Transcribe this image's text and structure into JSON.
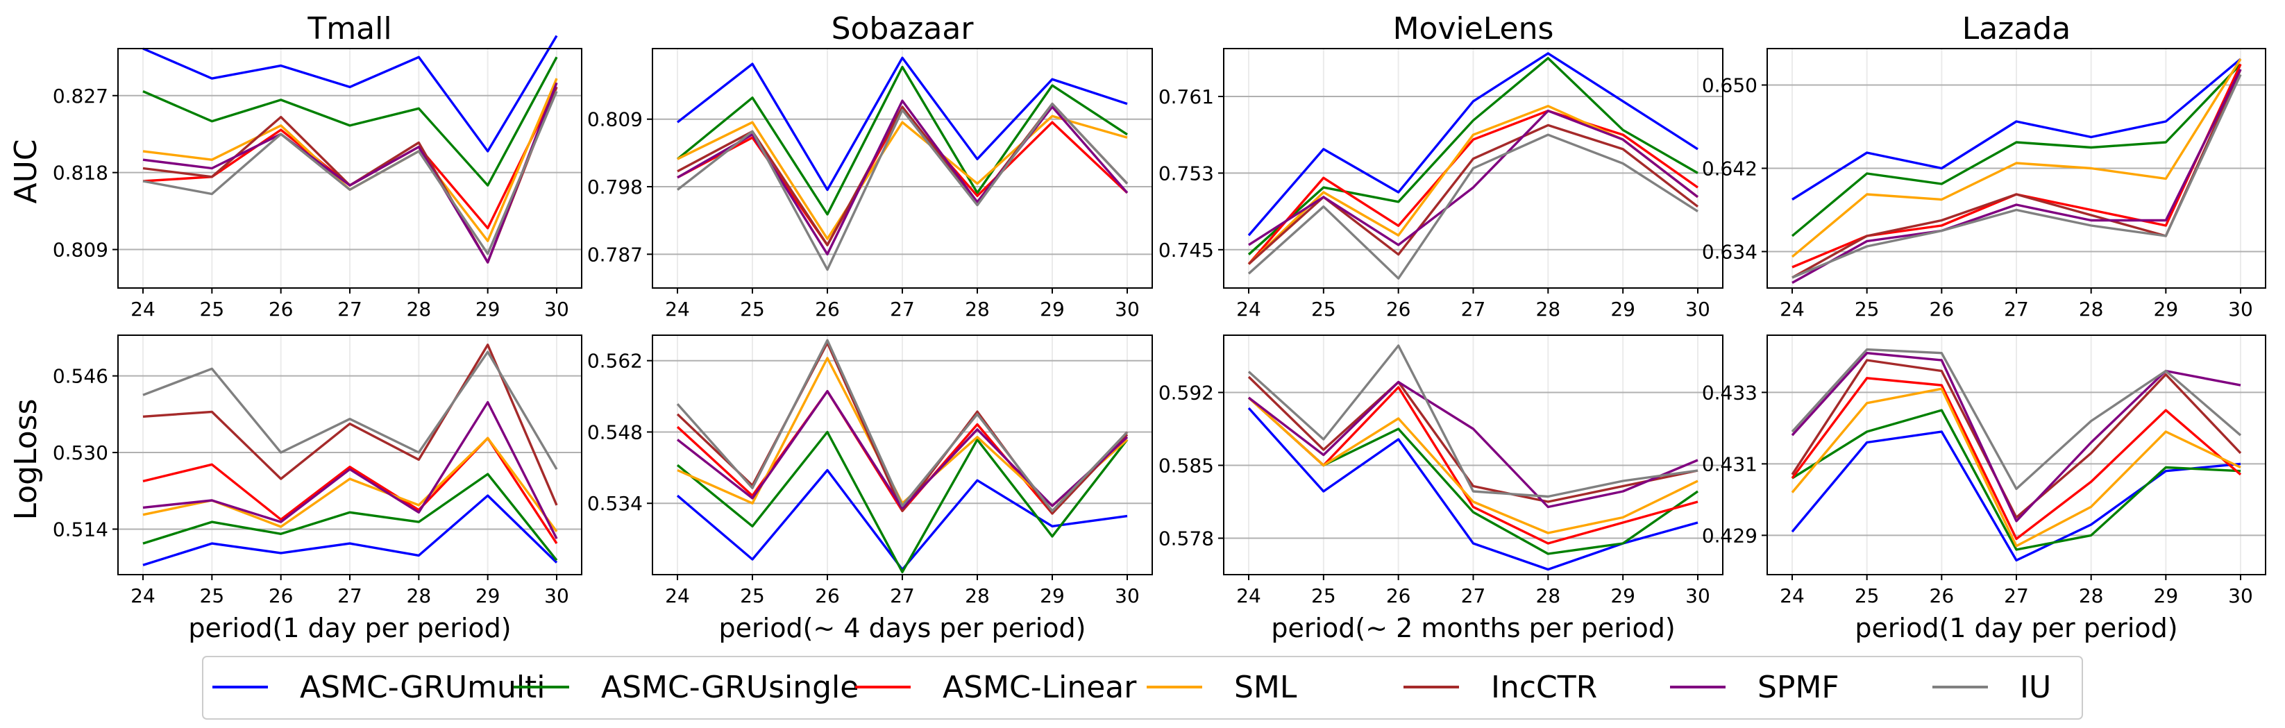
{
  "row_labels": [
    "AUC",
    "LogLoss"
  ],
  "legend": {
    "entries": [
      {
        "name": "ASMC-GRUmulti",
        "color": "#0000ff"
      },
      {
        "name": "ASMC-GRUsingle",
        "color": "#008000"
      },
      {
        "name": "ASMC-Linear",
        "color": "#ff0000"
      },
      {
        "name": "SML",
        "color": "#ffa500"
      },
      {
        "name": "IncCTR",
        "color": "#a52a2a"
      },
      {
        "name": "SPMF",
        "color": "#800080"
      },
      {
        "name": "IU",
        "color": "#808080"
      }
    ]
  },
  "chart_data": [
    {
      "type": "line",
      "metric": "AUC",
      "title": "Tmall",
      "xlabel": "",
      "x": [
        24,
        25,
        26,
        27,
        28,
        29,
        30
      ],
      "ylim": [
        0.8045,
        0.8325
      ],
      "yticks": [
        0.809,
        0.818,
        0.827
      ],
      "ytick_labels": [
        "0.809",
        "0.818",
        "0.827"
      ],
      "series": [
        {
          "name": "ASMC-GRUmulti",
          "values": [
            0.8325,
            0.829,
            0.8305,
            0.828,
            0.8315,
            0.8205,
            0.834
          ]
        },
        {
          "name": "ASMC-GRUsingle",
          "values": [
            0.8275,
            0.824,
            0.8265,
            0.8235,
            0.8255,
            0.8165,
            0.8315
          ]
        },
        {
          "name": "ASMC-Linear",
          "values": [
            0.817,
            0.8175,
            0.823,
            0.8165,
            0.821,
            0.8115,
            0.828
          ]
        },
        {
          "name": "SML",
          "values": [
            0.8205,
            0.8195,
            0.8235,
            0.816,
            0.8205,
            0.81,
            0.829
          ]
        },
        {
          "name": "IncCTR",
          "values": [
            0.8185,
            0.8175,
            0.8245,
            0.8165,
            0.8215,
            0.8075,
            0.828
          ]
        },
        {
          "name": "SPMF",
          "values": [
            0.8195,
            0.8185,
            0.8225,
            0.8165,
            0.821,
            0.8075,
            0.8285
          ]
        },
        {
          "name": "IU",
          "values": [
            0.817,
            0.8155,
            0.8225,
            0.816,
            0.8205,
            0.8085,
            0.8275
          ]
        }
      ]
    },
    {
      "type": "line",
      "metric": "AUC",
      "title": "Sobazaar",
      "xlabel": "",
      "x": [
        24,
        25,
        26,
        27,
        28,
        29,
        30
      ],
      "ylim": [
        0.7815,
        0.8205
      ],
      "yticks": [
        0.787,
        0.798,
        0.809
      ],
      "ytick_labels": [
        "0.787",
        "0.798",
        "0.809"
      ],
      "series": [
        {
          "name": "ASMC-GRUmulti",
          "values": [
            0.8085,
            0.818,
            0.7975,
            0.819,
            0.8025,
            0.8155,
            0.8115
          ]
        },
        {
          "name": "ASMC-GRUsingle",
          "values": [
            0.8025,
            0.8125,
            0.7935,
            0.8175,
            0.797,
            0.8145,
            0.8065
          ]
        },
        {
          "name": "ASMC-Linear",
          "values": [
            0.7995,
            0.806,
            0.7885,
            0.8105,
            0.7965,
            0.8085,
            0.797
          ]
        },
        {
          "name": "SML",
          "values": [
            0.8025,
            0.8085,
            0.7895,
            0.8085,
            0.7985,
            0.8095,
            0.806
          ]
        },
        {
          "name": "IncCTR",
          "values": [
            0.8005,
            0.807,
            0.7885,
            0.811,
            0.7955,
            0.8115,
            0.7985
          ]
        },
        {
          "name": "SPMF",
          "values": [
            0.7995,
            0.8065,
            0.787,
            0.812,
            0.7955,
            0.811,
            0.797
          ]
        },
        {
          "name": "IU",
          "values": [
            0.7975,
            0.807,
            0.7845,
            0.8105,
            0.795,
            0.8115,
            0.7985
          ]
        }
      ]
    },
    {
      "type": "line",
      "metric": "AUC",
      "title": "MovieLens",
      "xlabel": "",
      "x": [
        24,
        25,
        26,
        27,
        28,
        29,
        30
      ],
      "ylim": [
        0.741,
        0.766
      ],
      "yticks": [
        0.745,
        0.753,
        0.761
      ],
      "ytick_labels": [
        "0.745",
        "0.753",
        "0.761"
      ],
      "series": [
        {
          "name": "ASMC-GRUmulti",
          "values": [
            0.7465,
            0.7555,
            0.751,
            0.7605,
            0.7655,
            0.7605,
            0.7555
          ]
        },
        {
          "name": "ASMC-GRUsingle",
          "values": [
            0.7445,
            0.7515,
            0.75,
            0.7585,
            0.765,
            0.7575,
            0.753
          ]
        },
        {
          "name": "ASMC-Linear",
          "values": [
            0.7435,
            0.7525,
            0.7475,
            0.7565,
            0.7595,
            0.757,
            0.7515
          ]
        },
        {
          "name": "SML",
          "values": [
            0.7435,
            0.751,
            0.7465,
            0.757,
            0.76,
            0.7565,
            0.7505
          ]
        },
        {
          "name": "IncCTR",
          "values": [
            0.7435,
            0.7505,
            0.7445,
            0.7545,
            0.758,
            0.7555,
            0.7495
          ]
        },
        {
          "name": "SPMF",
          "values": [
            0.7455,
            0.7505,
            0.7455,
            0.7515,
            0.7595,
            0.7565,
            0.7505
          ]
        },
        {
          "name": "IU",
          "values": [
            0.7425,
            0.7495,
            0.742,
            0.7535,
            0.757,
            0.754,
            0.749
          ]
        }
      ]
    },
    {
      "type": "line",
      "metric": "AUC",
      "title": "Lazada",
      "xlabel": "",
      "x": [
        24,
        25,
        26,
        27,
        28,
        29,
        30
      ],
      "ylim": [
        0.6305,
        0.6535
      ],
      "yticks": [
        0.634,
        0.642,
        0.65
      ],
      "ytick_labels": [
        "0.634",
        "0.642",
        "0.650"
      ],
      "series": [
        {
          "name": "ASMC-GRUmulti",
          "values": [
            0.639,
            0.6435,
            0.642,
            0.6465,
            0.645,
            0.6465,
            0.6525
          ]
        },
        {
          "name": "ASMC-GRUsingle",
          "values": [
            0.6355,
            0.6415,
            0.6405,
            0.6445,
            0.644,
            0.6445,
            0.652
          ]
        },
        {
          "name": "ASMC-Linear",
          "values": [
            0.6325,
            0.6355,
            0.6365,
            0.6395,
            0.638,
            0.6365,
            0.652
          ]
        },
        {
          "name": "SML",
          "values": [
            0.6335,
            0.6395,
            0.639,
            0.6425,
            0.642,
            0.641,
            0.6525
          ]
        },
        {
          "name": "IncCTR",
          "values": [
            0.6315,
            0.6355,
            0.637,
            0.6395,
            0.6375,
            0.6355,
            0.6515
          ]
        },
        {
          "name": "SPMF",
          "values": [
            0.631,
            0.635,
            0.636,
            0.6385,
            0.637,
            0.637,
            0.6515
          ]
        },
        {
          "name": "IU",
          "values": [
            0.6315,
            0.6345,
            0.636,
            0.638,
            0.6365,
            0.6355,
            0.651
          ]
        }
      ]
    },
    {
      "type": "line",
      "metric": "LogLoss",
      "title": "",
      "xlabel": "period(1 day per period)",
      "x": [
        24,
        25,
        26,
        27,
        28,
        29,
        30
      ],
      "ylim": [
        0.5045,
        0.5545
      ],
      "yticks": [
        0.514,
        0.53,
        0.546
      ],
      "ytick_labels": [
        "0.514",
        "0.530",
        "0.546"
      ],
      "series": [
        {
          "name": "ASMC-GRUmulti",
          "values": [
            0.5065,
            0.511,
            0.509,
            0.511,
            0.5085,
            0.521,
            0.507
          ]
        },
        {
          "name": "ASMC-GRUsingle",
          "values": [
            0.511,
            0.5155,
            0.513,
            0.5175,
            0.5155,
            0.5255,
            0.5075
          ]
        },
        {
          "name": "ASMC-Linear",
          "values": [
            0.524,
            0.5275,
            0.516,
            0.527,
            0.518,
            0.533,
            0.511
          ]
        },
        {
          "name": "SML",
          "values": [
            0.517,
            0.52,
            0.5145,
            0.5245,
            0.519,
            0.533,
            0.5135
          ]
        },
        {
          "name": "IncCTR",
          "values": [
            0.5375,
            0.5385,
            0.5245,
            0.536,
            0.5285,
            0.5525,
            0.519
          ]
        },
        {
          "name": "SPMF",
          "values": [
            0.5185,
            0.52,
            0.5155,
            0.5265,
            0.5175,
            0.5405,
            0.512
          ]
        },
        {
          "name": "IU",
          "values": [
            0.542,
            0.5475,
            0.53,
            0.537,
            0.53,
            0.551,
            0.5265
          ]
        }
      ]
    },
    {
      "type": "line",
      "metric": "LogLoss",
      "title": "",
      "xlabel": "period(~ 4 days per period)",
      "x": [
        24,
        25,
        26,
        27,
        28,
        29,
        30
      ],
      "ylim": [
        0.52,
        0.567
      ],
      "yticks": [
        0.534,
        0.548,
        0.562
      ],
      "ytick_labels": [
        "0.534",
        "0.548",
        "0.562"
      ],
      "series": [
        {
          "name": "ASMC-GRUmulti",
          "values": [
            0.5355,
            0.523,
            0.5405,
            0.521,
            0.5385,
            0.5295,
            0.5315
          ]
        },
        {
          "name": "ASMC-GRUsingle",
          "values": [
            0.5415,
            0.5295,
            0.548,
            0.5205,
            0.5465,
            0.5275,
            0.5465
          ]
        },
        {
          "name": "ASMC-Linear",
          "values": [
            0.549,
            0.5355,
            0.556,
            0.5325,
            0.5495,
            0.532,
            0.548
          ]
        },
        {
          "name": "SML",
          "values": [
            0.5405,
            0.534,
            0.5625,
            0.534,
            0.547,
            0.5335,
            0.5465
          ]
        },
        {
          "name": "IncCTR",
          "values": [
            0.5515,
            0.5375,
            0.5655,
            0.5325,
            0.552,
            0.532,
            0.5475
          ]
        },
        {
          "name": "SPMF",
          "values": [
            0.5465,
            0.535,
            0.556,
            0.533,
            0.5485,
            0.5335,
            0.547
          ]
        },
        {
          "name": "IU",
          "values": [
            0.5535,
            0.537,
            0.566,
            0.5335,
            0.5515,
            0.5325,
            0.548
          ]
        }
      ]
    },
    {
      "type": "line",
      "metric": "LogLoss",
      "title": "",
      "xlabel": "period(~ 2 months per period)",
      "x": [
        24,
        25,
        26,
        27,
        28,
        29,
        30
      ],
      "ylim": [
        0.5745,
        0.5975
      ],
      "yticks": [
        0.578,
        0.585,
        0.592
      ],
      "ytick_labels": [
        "0.578",
        "0.585",
        "0.592"
      ],
      "series": [
        {
          "name": "ASMC-GRUmulti",
          "values": [
            0.5905,
            0.5825,
            0.5875,
            0.5775,
            0.575,
            0.5775,
            0.5795
          ]
        },
        {
          "name": "ASMC-GRUsingle",
          "values": [
            0.5915,
            0.585,
            0.5885,
            0.5805,
            0.5765,
            0.5775,
            0.5825
          ]
        },
        {
          "name": "ASMC-Linear",
          "values": [
            0.5915,
            0.585,
            0.5925,
            0.581,
            0.5775,
            0.5795,
            0.5815
          ]
        },
        {
          "name": "SML",
          "values": [
            0.5915,
            0.585,
            0.5895,
            0.5815,
            0.5785,
            0.58,
            0.5835
          ]
        },
        {
          "name": "IncCTR",
          "values": [
            0.5935,
            0.5865,
            0.593,
            0.583,
            0.5815,
            0.583,
            0.5845
          ]
        },
        {
          "name": "SPMF",
          "values": [
            0.5915,
            0.586,
            0.593,
            0.5885,
            0.581,
            0.5825,
            0.5855
          ]
        },
        {
          "name": "IU",
          "values": [
            0.594,
            0.5875,
            0.5965,
            0.5825,
            0.582,
            0.5835,
            0.5845
          ]
        }
      ]
    },
    {
      "type": "line",
      "metric": "LogLoss",
      "title": "",
      "xlabel": "period(1 day per period)",
      "x": [
        24,
        25,
        26,
        27,
        28,
        29,
        30
      ],
      "ylim": [
        0.4279,
        0.4346
      ],
      "yticks": [
        0.429,
        0.431,
        0.433
      ],
      "ytick_labels": [
        "0.429",
        "0.431",
        "0.433"
      ],
      "series": [
        {
          "name": "ASMC-GRUmulti",
          "values": [
            0.4291,
            0.4316,
            0.4319,
            0.4283,
            0.4293,
            0.4308,
            0.431
          ]
        },
        {
          "name": "ASMC-GRUsingle",
          "values": [
            0.4306,
            0.4319,
            0.4325,
            0.4286,
            0.429,
            0.4309,
            0.4308
          ]
        },
        {
          "name": "ASMC-Linear",
          "values": [
            0.4306,
            0.4334,
            0.4332,
            0.4289,
            0.4305,
            0.4325,
            0.4307
          ]
        },
        {
          "name": "SML",
          "values": [
            0.4302,
            0.4327,
            0.4331,
            0.4287,
            0.4298,
            0.4319,
            0.4309
          ]
        },
        {
          "name": "IncCTR",
          "values": [
            0.4307,
            0.4339,
            0.4336,
            0.4295,
            0.4313,
            0.4335,
            0.4313
          ]
        },
        {
          "name": "SPMF",
          "values": [
            0.4318,
            0.4341,
            0.4339,
            0.4294,
            0.4316,
            0.4336,
            0.4332
          ]
        },
        {
          "name": "IU",
          "values": [
            0.4319,
            0.4342,
            0.4341,
            0.4303,
            0.4322,
            0.4336,
            0.4318
          ]
        }
      ]
    }
  ]
}
